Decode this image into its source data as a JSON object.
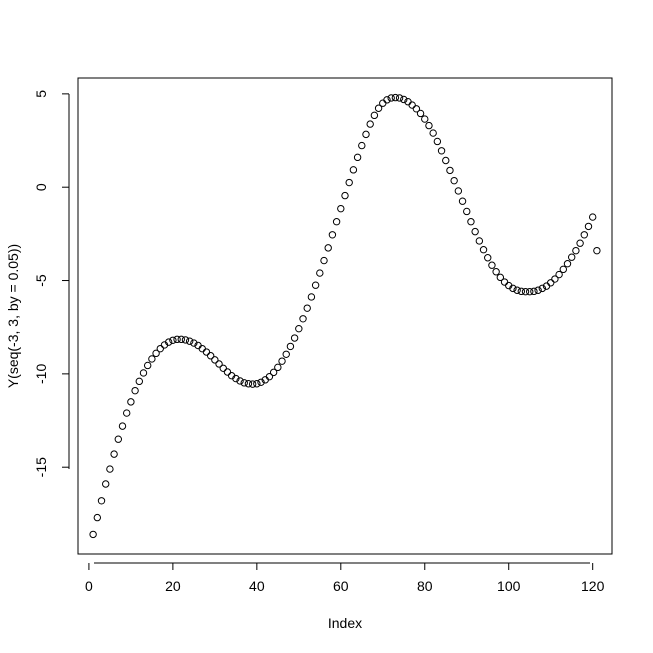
{
  "chart_data": {
    "type": "scatter",
    "title": "",
    "xlabel": "Index",
    "ylabel": "Y(seq(-3, 3, by = 0.05))",
    "xlim": [
      -2.6,
      124.6
    ],
    "ylim": [
      -19.65,
      5.85
    ],
    "x_ticks": [
      0,
      20,
      40,
      60,
      80,
      100,
      120
    ],
    "y_ticks": [
      -15,
      -10,
      -5,
      0,
      5
    ],
    "grid": false,
    "marker": "open-circle",
    "series": [
      {
        "x": [
          1,
          2,
          3,
          4,
          5,
          6,
          7,
          8,
          9,
          10,
          11,
          12,
          13,
          14,
          15,
          16,
          17,
          18,
          19,
          20,
          21,
          22,
          23,
          24,
          25,
          26,
          27,
          28,
          29,
          30,
          31,
          32,
          33,
          34,
          35,
          36,
          37,
          38,
          39,
          40,
          41,
          42,
          43,
          44,
          45,
          46,
          47,
          48,
          49,
          50,
          51,
          52,
          53,
          54,
          55,
          56,
          57,
          58,
          59,
          60,
          61,
          62,
          63,
          64,
          65,
          66,
          67,
          68,
          69,
          70,
          71,
          72,
          73,
          74,
          75,
          76,
          77,
          78,
          79,
          80,
          81,
          82,
          83,
          84,
          85,
          86,
          87,
          88,
          89,
          90,
          91,
          92,
          93,
          94,
          95,
          96,
          97,
          98,
          99,
          100,
          101,
          102,
          103,
          104,
          105,
          106,
          107,
          108,
          109,
          110,
          111,
          112,
          113,
          114,
          115,
          116,
          117,
          118,
          119,
          120,
          121
        ],
        "y": [
          -18.6,
          -17.7,
          -16.8,
          -15.9,
          -15.1,
          -14.3,
          -13.5,
          -12.8,
          -12.1,
          -11.5,
          -10.9,
          -10.4,
          -9.95,
          -9.55,
          -9.2,
          -8.9,
          -8.65,
          -8.45,
          -8.3,
          -8.2,
          -8.15,
          -8.15,
          -8.18,
          -8.25,
          -8.35,
          -8.48,
          -8.65,
          -8.83,
          -9.03,
          -9.25,
          -9.47,
          -9.7,
          -9.9,
          -10.1,
          -10.25,
          -10.38,
          -10.48,
          -10.53,
          -10.55,
          -10.53,
          -10.45,
          -10.32,
          -10.15,
          -9.92,
          -9.65,
          -9.32,
          -8.95,
          -8.53,
          -8.08,
          -7.58,
          -7.05,
          -6.48,
          -5.88,
          -5.25,
          -4.6,
          -3.93,
          -3.25,
          -2.55,
          -1.85,
          -1.15,
          -0.45,
          0.25,
          0.93,
          1.6,
          2.23,
          2.83,
          3.38,
          3.85,
          4.23,
          4.5,
          4.68,
          4.78,
          4.8,
          4.78,
          4.7,
          4.58,
          4.4,
          4.2,
          3.95,
          3.65,
          3.3,
          2.9,
          2.45,
          1.95,
          1.43,
          0.9,
          0.35,
          -0.2,
          -0.75,
          -1.3,
          -1.85,
          -2.38,
          -2.88,
          -3.35,
          -3.78,
          -4.18,
          -4.53,
          -4.83,
          -5.08,
          -5.27,
          -5.42,
          -5.52,
          -5.58,
          -5.6,
          -5.6,
          -5.58,
          -5.52,
          -5.42,
          -5.3,
          -5.12,
          -4.92,
          -4.68,
          -4.4,
          -4.1,
          -3.75,
          -3.4,
          -3.0,
          -2.55,
          -2.1,
          -1.6,
          -3.4
        ]
      }
    ]
  }
}
